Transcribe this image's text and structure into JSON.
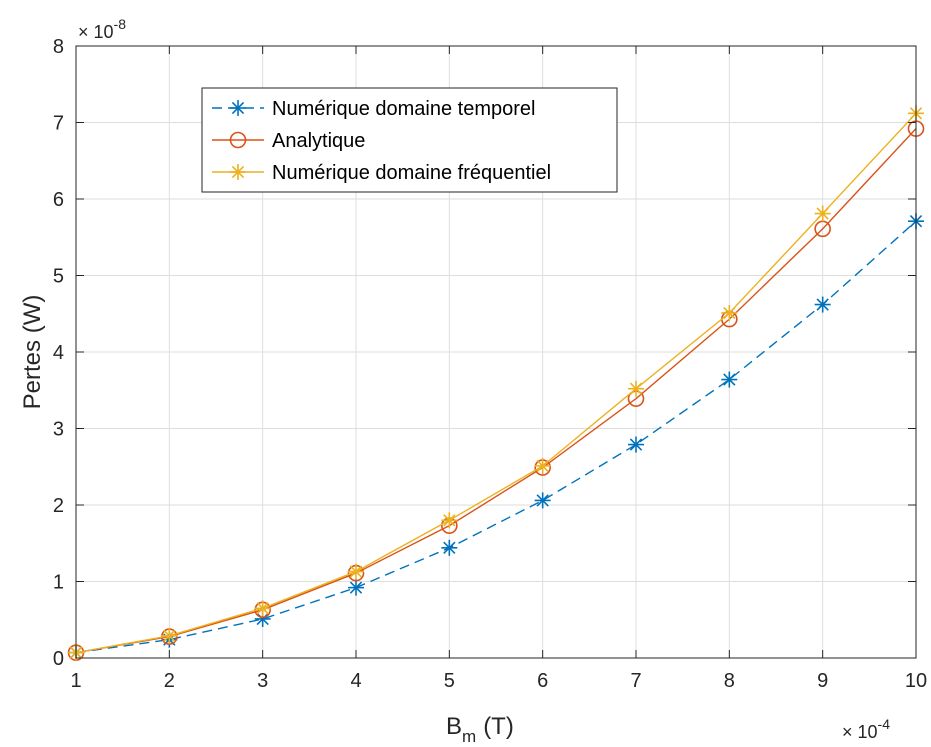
{
  "chart_data": {
    "type": "line",
    "x": [
      1,
      2,
      3,
      4,
      5,
      6,
      7,
      8,
      9,
      10
    ],
    "x_multiplier": "× 10",
    "x_exponent": "-4",
    "y_multiplier": "× 10",
    "y_exponent": "-8",
    "xlabel_main": "B",
    "xlabel_sub": "m",
    "xlabel_unit": "(T)",
    "ylabel": "Pertes (W)",
    "xlim": [
      1,
      10
    ],
    "ylim": [
      0,
      8
    ],
    "xticks": [
      1,
      2,
      3,
      4,
      5,
      6,
      7,
      8,
      9,
      10
    ],
    "yticks": [
      0,
      1,
      2,
      3,
      4,
      5,
      6,
      7,
      8
    ],
    "grid": true,
    "legend_position": "top-left",
    "series": [
      {
        "name": "Numérique domaine temporel",
        "values": [
          0.07,
          0.24,
          0.51,
          0.92,
          1.44,
          2.06,
          2.79,
          3.64,
          4.62,
          5.71
        ],
        "color": "#0072BD",
        "line_style": "dashed",
        "marker": "asterisk"
      },
      {
        "name": "Analytique",
        "values": [
          0.07,
          0.28,
          0.63,
          1.11,
          1.73,
          2.49,
          3.39,
          4.43,
          5.61,
          6.92
        ],
        "color": "#D95319",
        "line_style": "solid",
        "marker": "circle"
      },
      {
        "name": "Numérique domaine fréquentiel",
        "values": [
          0.07,
          0.29,
          0.65,
          1.13,
          1.8,
          2.51,
          3.52,
          4.51,
          5.81,
          7.12
        ],
        "color": "#EDB120",
        "line_style": "solid",
        "marker": "asterisk"
      }
    ]
  }
}
